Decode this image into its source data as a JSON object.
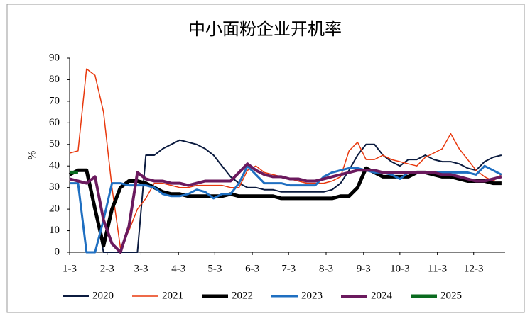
{
  "chart_data": {
    "type": "line",
    "title": "中小面粉企业开机率",
    "y_label": "%",
    "x": [
      0,
      7,
      14,
      21,
      28,
      35,
      42,
      49,
      56,
      63,
      70,
      77,
      84,
      91,
      98,
      105,
      112,
      119,
      126,
      133,
      140,
      147,
      154,
      161,
      168,
      175,
      182,
      189,
      196,
      203,
      210,
      217,
      224,
      231,
      238,
      245,
      252,
      259,
      266,
      273,
      280,
      287,
      294,
      301,
      308,
      315,
      322,
      329,
      336,
      343,
      350,
      357
    ],
    "xlim": [
      0,
      360
    ],
    "xticks": [
      {
        "value": 0,
        "label": "1-3"
      },
      {
        "value": 31,
        "label": "2-3"
      },
      {
        "value": 59,
        "label": "3-3"
      },
      {
        "value": 90,
        "label": "4-3"
      },
      {
        "value": 120,
        "label": "5-3"
      },
      {
        "value": 151,
        "label": "6-3"
      },
      {
        "value": 181,
        "label": "7-3"
      },
      {
        "value": 212,
        "label": "8-3"
      },
      {
        "value": 243,
        "label": "9-3"
      },
      {
        "value": 273,
        "label": "10-3"
      },
      {
        "value": 304,
        "label": "11-3"
      },
      {
        "value": 334,
        "label": "12-3"
      }
    ],
    "ylim": [
      0,
      90
    ],
    "yticks": [
      0,
      10,
      20,
      30,
      40,
      50,
      60,
      70,
      80,
      90
    ],
    "grid": false,
    "series": [
      {
        "name": "2020",
        "color": "#0b1b3f",
        "values": [
          36,
          38,
          38,
          20,
          0,
          0,
          0,
          0,
          0,
          45,
          45,
          48,
          50,
          52,
          51,
          50,
          48,
          45,
          40,
          35,
          32,
          30,
          30,
          29,
          29,
          28,
          28,
          28,
          28,
          28,
          28,
          29,
          32,
          38,
          45,
          50,
          50,
          45,
          42,
          40,
          43,
          43,
          45,
          43,
          42,
          42,
          41,
          39,
          38,
          42,
          44,
          45
        ]
      },
      {
        "name": "2021",
        "color": "#e8380d",
        "values": [
          46,
          47,
          85,
          82,
          65,
          30,
          2,
          10,
          20,
          25,
          32,
          32,
          31,
          30,
          30,
          31,
          31,
          31,
          31,
          30,
          30,
          38,
          40,
          37,
          36,
          35,
          34,
          33,
          32,
          32,
          32,
          33,
          35,
          47,
          51,
          43,
          43,
          45,
          43,
          42,
          41,
          40,
          44,
          46,
          48,
          55,
          48,
          43,
          38,
          35,
          33,
          36
        ]
      },
      {
        "name": "2022",
        "color": "#000000",
        "values": [
          36,
          38,
          38,
          20,
          3,
          20,
          30,
          33,
          33,
          32,
          30,
          28,
          27,
          27,
          26,
          26,
          26,
          26,
          26,
          27,
          26,
          26,
          26,
          26,
          26,
          25,
          25,
          25,
          25,
          25,
          25,
          25,
          26,
          26,
          30,
          39,
          37,
          35,
          35,
          35,
          35,
          37,
          37,
          36,
          35,
          35,
          34,
          33,
          33,
          33,
          32,
          32
        ]
      },
      {
        "name": "2023",
        "color": "#1f6fc1",
        "values": [
          32,
          32,
          0,
          0,
          15,
          32,
          32,
          31,
          31,
          31,
          30,
          27,
          26,
          26,
          27,
          29,
          28,
          25,
          27,
          27,
          32,
          40,
          36,
          32,
          32,
          32,
          31,
          31,
          31,
          31,
          35,
          37,
          38,
          39,
          39,
          38,
          37,
          37,
          36,
          34,
          37,
          37,
          37,
          37,
          37,
          37,
          37,
          37,
          36,
          40,
          38,
          36
        ]
      },
      {
        "name": "2024",
        "color": "#6b1a5e",
        "values": [
          34,
          33,
          32,
          35,
          15,
          4,
          0,
          12,
          37,
          34,
          33,
          33,
          32,
          32,
          31,
          32,
          33,
          33,
          33,
          33,
          37,
          41,
          38,
          36,
          35,
          35,
          34,
          34,
          33,
          33,
          34,
          35,
          36,
          37,
          38,
          38,
          38,
          37,
          37,
          37,
          37,
          37,
          37,
          37,
          36,
          36,
          35,
          34,
          33,
          33,
          34,
          35
        ]
      },
      {
        "name": "2025",
        "color": "#0a6b1f",
        "values": [
          37,
          37,
          null,
          null,
          null,
          null,
          null,
          null,
          null,
          null,
          null,
          null,
          null,
          null,
          null,
          null,
          null,
          null,
          null,
          null,
          null,
          null,
          null,
          null,
          null,
          null,
          null,
          null,
          null,
          null,
          null,
          null,
          null,
          null,
          null,
          null,
          null,
          null,
          null,
          null,
          null,
          null,
          null,
          null,
          null,
          null,
          null,
          null,
          null,
          null,
          null,
          null
        ]
      }
    ]
  }
}
